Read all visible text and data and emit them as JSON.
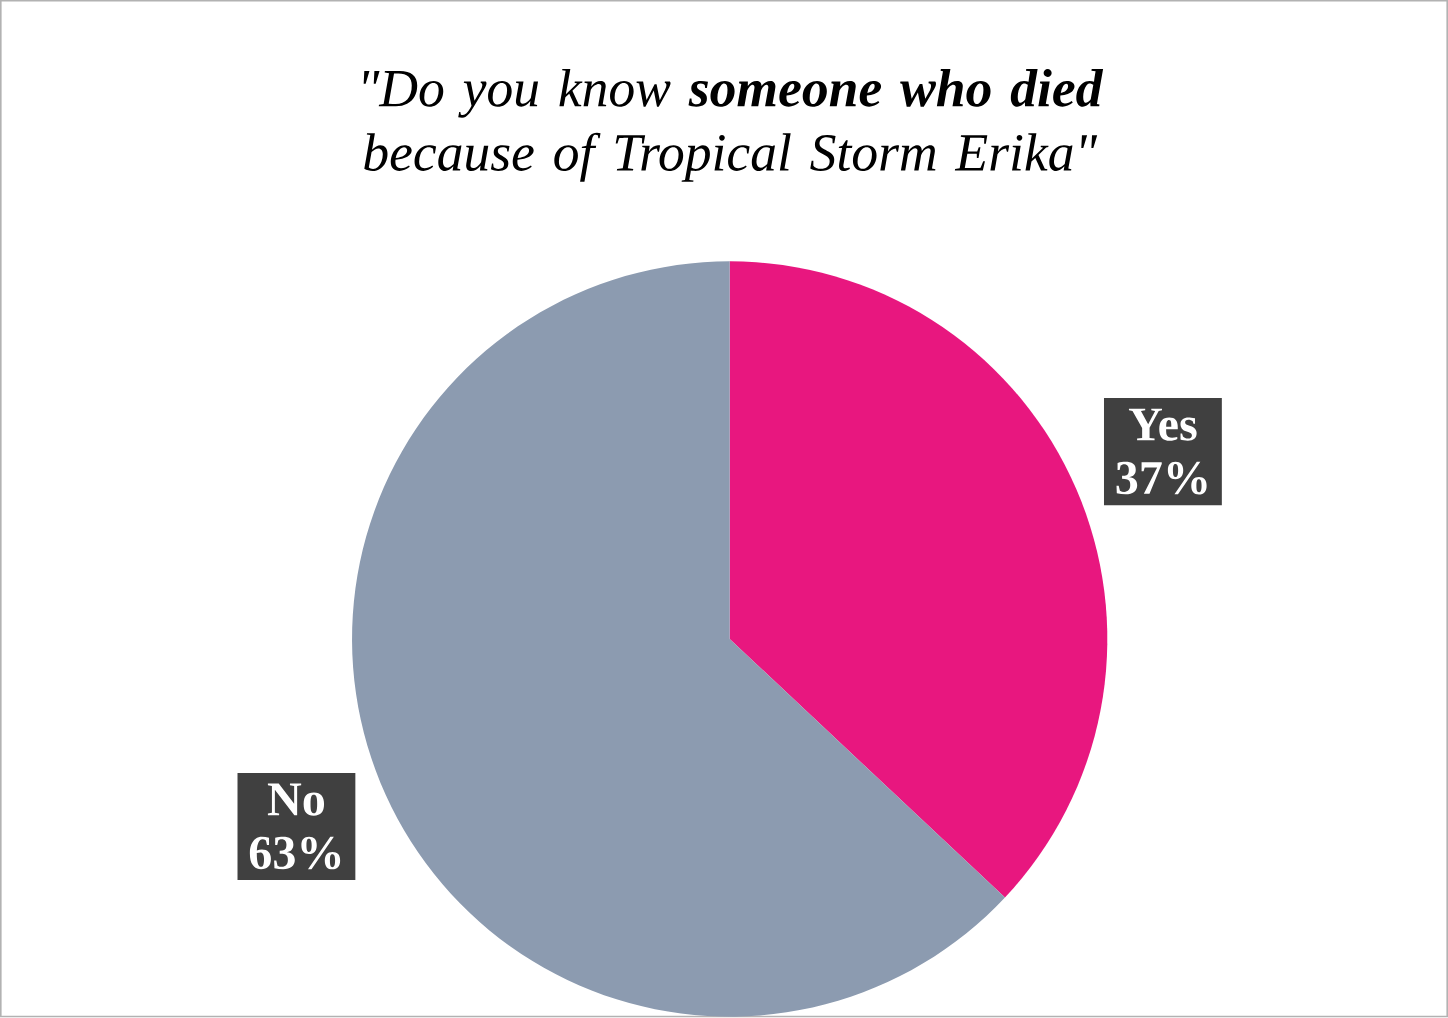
{
  "chart_data": {
    "type": "pie",
    "title": "\"Do you know **someone who died** because of Tropical Storm Erika\"",
    "categories": [
      "Yes",
      "No"
    ],
    "values": [
      37,
      63
    ],
    "value_labels": [
      "37%",
      "63%"
    ],
    "colors": [
      "#e8177f",
      "#8c9bb0"
    ]
  }
}
